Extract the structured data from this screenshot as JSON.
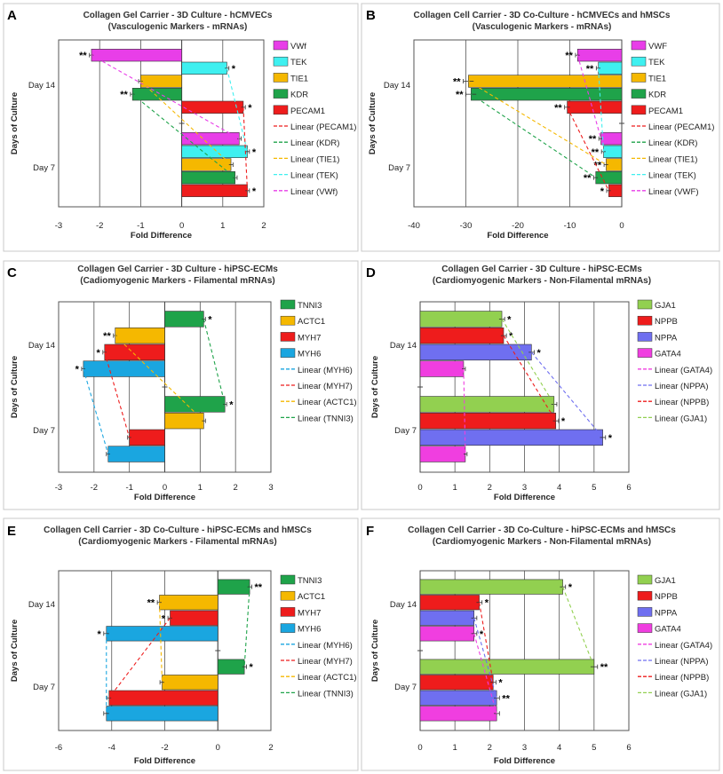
{
  "colors": {
    "magenta": "#e83ee8",
    "cyan": "#3ff0f0",
    "yellow": "#f5b800",
    "green": "#1fa34a",
    "red": "#ee1c1c",
    "lime": "#92d050",
    "blue": "#6f6ff0",
    "pink": "#f03ee0",
    "sky": "#1aa6e0"
  },
  "chart_data": [
    {
      "panel": "A",
      "type": "bar",
      "orientation": "horizontal",
      "title_line1": "Collagen Gel Carrier - 3D Culture - hCMVECs",
      "title_line2": "(Vasculogenic Markers - mRNAs)",
      "xlabel": "Fold Difference",
      "ylabel": "Days of Culture",
      "xlim": [
        -3,
        2
      ],
      "xticks": [
        -3,
        -2,
        -1,
        0,
        1,
        2
      ],
      "categories": [
        "Day 14",
        "Day 7"
      ],
      "series": [
        {
          "name": "VWf",
          "color": "#e83ee8",
          "values": [
            -2.2,
            1.4
          ],
          "errors": [
            0.05,
            0.05
          ],
          "sig": [
            "**",
            ""
          ]
        },
        {
          "name": "TEK",
          "color": "#3ff0f0",
          "values": [
            1.1,
            1.6
          ],
          "errors": [
            0.05,
            0.05
          ],
          "sig": [
            "*",
            "*"
          ]
        },
        {
          "name": "TIE1",
          "color": "#f5b800",
          "values": [
            -1.0,
            1.2
          ],
          "errors": [
            0.05,
            0.05
          ],
          "sig": [
            "",
            ""
          ]
        },
        {
          "name": "KDR",
          "color": "#1fa34a",
          "values": [
            -1.2,
            1.3
          ],
          "errors": [
            0.05,
            0.05
          ],
          "sig": [
            "**",
            ""
          ]
        },
        {
          "name": "PECAM1",
          "color": "#ee1c1c",
          "values": [
            1.5,
            1.6
          ],
          "errors": [
            0.05,
            0.05
          ],
          "sig": [
            "*",
            "*"
          ]
        }
      ],
      "trendlines": [
        "Linear (PECAM1)",
        "Linear (KDR)",
        "Linear (TIE1)",
        "Linear (TEK)",
        "Linear (VWf)"
      ]
    },
    {
      "panel": "B",
      "type": "bar",
      "orientation": "horizontal",
      "title_line1": "Collagen Cell Carrier - 3D Co-Culture - hCMVECs and hMSCs",
      "title_line2": "(Vasculogenic Markers - mRNAs)",
      "xlabel": "Fold Difference",
      "ylabel": "Days of Culture",
      "xlim": [
        -40,
        0
      ],
      "xticks": [
        -40,
        -30,
        -20,
        -10,
        0
      ],
      "categories": [
        "Day 14",
        "Day 7"
      ],
      "series": [
        {
          "name": "VWF",
          "color": "#e83ee8",
          "values": [
            -8.5,
            -4.0
          ],
          "errors": [
            0.4,
            0.4
          ],
          "sig": [
            "**",
            "**"
          ]
        },
        {
          "name": "TEK",
          "color": "#3ff0f0",
          "values": [
            -4.5,
            -3.5
          ],
          "errors": [
            0.4,
            0.4
          ],
          "sig": [
            "**",
            "**"
          ]
        },
        {
          "name": "TIE1",
          "color": "#f5b800",
          "values": [
            -29.5,
            -3.0
          ],
          "errors": [
            1.0,
            0.4
          ],
          "sig": [
            "**",
            "**"
          ]
        },
        {
          "name": "KDR",
          "color": "#1fa34a",
          "values": [
            -29.0,
            -5.0
          ],
          "errors": [
            1.0,
            0.4
          ],
          "sig": [
            "**",
            "**"
          ]
        },
        {
          "name": "PECAM1",
          "color": "#ee1c1c",
          "values": [
            -10.5,
            -2.5
          ],
          "errors": [
            0.5,
            0.4
          ],
          "sig": [
            "**",
            "*"
          ]
        }
      ],
      "trendlines": [
        "Linear (PECAM1)",
        "Linear (KDR)",
        "Linear (TIE1)",
        "Linear (TEK)",
        "Linear (VWF)"
      ]
    },
    {
      "panel": "C",
      "type": "bar",
      "orientation": "horizontal",
      "title_line1": "Collagen Gel Carrier - 3D Culture - hiPSC-ECMs",
      "title_line2": "(Cadiomyogenic Markers - Filamental mRNAs)",
      "xlabel": "Fold Difference",
      "ylabel": "Days of Culture",
      "xlim": [
        -3,
        3
      ],
      "xticks": [
        -3,
        -2,
        -1,
        0,
        1,
        2,
        3
      ],
      "categories": [
        "Day 14",
        "Day 7"
      ],
      "series": [
        {
          "name": "TNNI3",
          "color": "#1fa34a",
          "values": [
            1.1,
            1.7
          ],
          "errors": [
            0.05,
            0.05
          ],
          "sig": [
            "*",
            "*"
          ]
        },
        {
          "name": "ACTC1",
          "color": "#f5b800",
          "values": [
            -1.4,
            1.1
          ],
          "errors": [
            0.05,
            0.05
          ],
          "sig": [
            "**",
            ""
          ]
        },
        {
          "name": "MYH7",
          "color": "#ee1c1c",
          "values": [
            -1.7,
            -1.0
          ],
          "errors": [
            0.05,
            0.05
          ],
          "sig": [
            "*",
            ""
          ]
        },
        {
          "name": "MYH6",
          "color": "#1aa6e0",
          "values": [
            -2.3,
            -1.6
          ],
          "errors": [
            0.05,
            0.05
          ],
          "sig": [
            "*",
            ""
          ]
        }
      ],
      "trendlines": [
        "Linear (MYH6)",
        "Linear (MYH7)",
        "Linear (ACTC1)",
        "Linear (TNNI3)"
      ]
    },
    {
      "panel": "D",
      "type": "bar",
      "orientation": "horizontal",
      "title_line1": "Collagen Gel Carrier - 3D Culture - hiPSC-ECMs",
      "title_line2": "(Cardiomyogenic Markers - Non-Filamental mRNAs)",
      "xlabel": "Fold Difference",
      "ylabel": "Days of Culture",
      "xlim": [
        0,
        6
      ],
      "xticks": [
        0,
        1,
        2,
        3,
        4,
        5,
        6
      ],
      "categories": [
        "Day 14",
        "Day 7"
      ],
      "series": [
        {
          "name": "GJA1",
          "color": "#92d050",
          "values": [
            2.35,
            3.85
          ],
          "errors": [
            0.08,
            0.08
          ],
          "sig": [
            "*",
            ""
          ]
        },
        {
          "name": "NPPB",
          "color": "#ee1c1c",
          "values": [
            2.4,
            3.9
          ],
          "errors": [
            0.08,
            0.08
          ],
          "sig": [
            "*",
            "*"
          ]
        },
        {
          "name": "NPPA",
          "color": "#6f6ff0",
          "values": [
            3.2,
            5.25
          ],
          "errors": [
            0.08,
            0.08
          ],
          "sig": [
            "*",
            "*"
          ]
        },
        {
          "name": "GATA4",
          "color": "#f03ee0",
          "values": [
            1.25,
            1.3
          ],
          "errors": [
            0.05,
            0.05
          ],
          "sig": [
            "",
            ""
          ]
        }
      ],
      "trendlines": [
        "Linear (GATA4)",
        "Linear (NPPA)",
        "Linear (NPPB)",
        "Linear (GJA1)"
      ]
    },
    {
      "panel": "E",
      "type": "bar",
      "orientation": "horizontal",
      "title_line1": "Collagen Cell Carrier - 3D Co-Culture - hiPSC-ECMs and hMSCs",
      "title_line2": "(Cardiomyogenic Markers - Filamental mRNAs)",
      "xlabel": "Fold Difference",
      "ylabel": "Days of Culture",
      "xlim": [
        -6,
        2
      ],
      "xticks": [
        -6,
        -4,
        -2,
        0,
        2
      ],
      "categories": [
        "Day 14",
        "Day 7"
      ],
      "series": [
        {
          "name": "TNNI3",
          "color": "#1fa34a",
          "values": [
            1.2,
            1.0
          ],
          "errors": [
            0.08,
            0.08
          ],
          "sig": [
            "**",
            "*"
          ]
        },
        {
          "name": "ACTC1",
          "color": "#f5b800",
          "values": [
            -2.2,
            -2.1
          ],
          "errors": [
            0.08,
            0.08
          ],
          "sig": [
            "**",
            ""
          ]
        },
        {
          "name": "MYH7",
          "color": "#ee1c1c",
          "values": [
            -1.8,
            -4.1
          ],
          "errors": [
            0.08,
            0.08
          ],
          "sig": [
            "*",
            ""
          ]
        },
        {
          "name": "MYH6",
          "color": "#1aa6e0",
          "values": [
            -4.2,
            -4.2
          ],
          "errors": [
            0.1,
            0.1
          ],
          "sig": [
            "*",
            ""
          ]
        }
      ],
      "trendlines": [
        "Linear (MYH6)",
        "Linear (MYH7)",
        "Linear (ACTC1)",
        "Linear (TNNI3)"
      ]
    },
    {
      "panel": "F",
      "type": "bar",
      "orientation": "horizontal",
      "title_line1": "Collagen Cell Carrier - 3D Co-Culture - hiPSC-ECMs and hMSCs",
      "title_line2": "(Cardiomyogenic Markers - Non-Filamental mRNAs)",
      "xlabel": "Fold Difference",
      "ylabel": "Days of Culture",
      "xlim": [
        0,
        6
      ],
      "xticks": [
        0,
        1,
        2,
        3,
        4,
        5,
        6
      ],
      "categories": [
        "Day 14",
        "Day 7"
      ],
      "series": [
        {
          "name": "GJA1",
          "color": "#92d050",
          "values": [
            4.1,
            5.0
          ],
          "errors": [
            0.08,
            0.1
          ],
          "sig": [
            "*",
            "**"
          ]
        },
        {
          "name": "NPPB",
          "color": "#ee1c1c",
          "values": [
            1.7,
            2.1
          ],
          "errors": [
            0.08,
            0.08
          ],
          "sig": [
            "*",
            "*"
          ]
        },
        {
          "name": "NPPA",
          "color": "#6f6ff0",
          "values": [
            1.55,
            2.2
          ],
          "errors": [
            0.08,
            0.08
          ],
          "sig": [
            "",
            "**"
          ]
        },
        {
          "name": "GATA4",
          "color": "#f03ee0",
          "values": [
            1.55,
            2.2
          ],
          "errors": [
            0.08,
            0.08
          ],
          "sig": [
            "*",
            ""
          ]
        }
      ],
      "trendlines": [
        "Linear (GATA4)",
        "Linear (NPPA)",
        "Linear (NPPB)",
        "Linear (GJA1)"
      ]
    }
  ]
}
